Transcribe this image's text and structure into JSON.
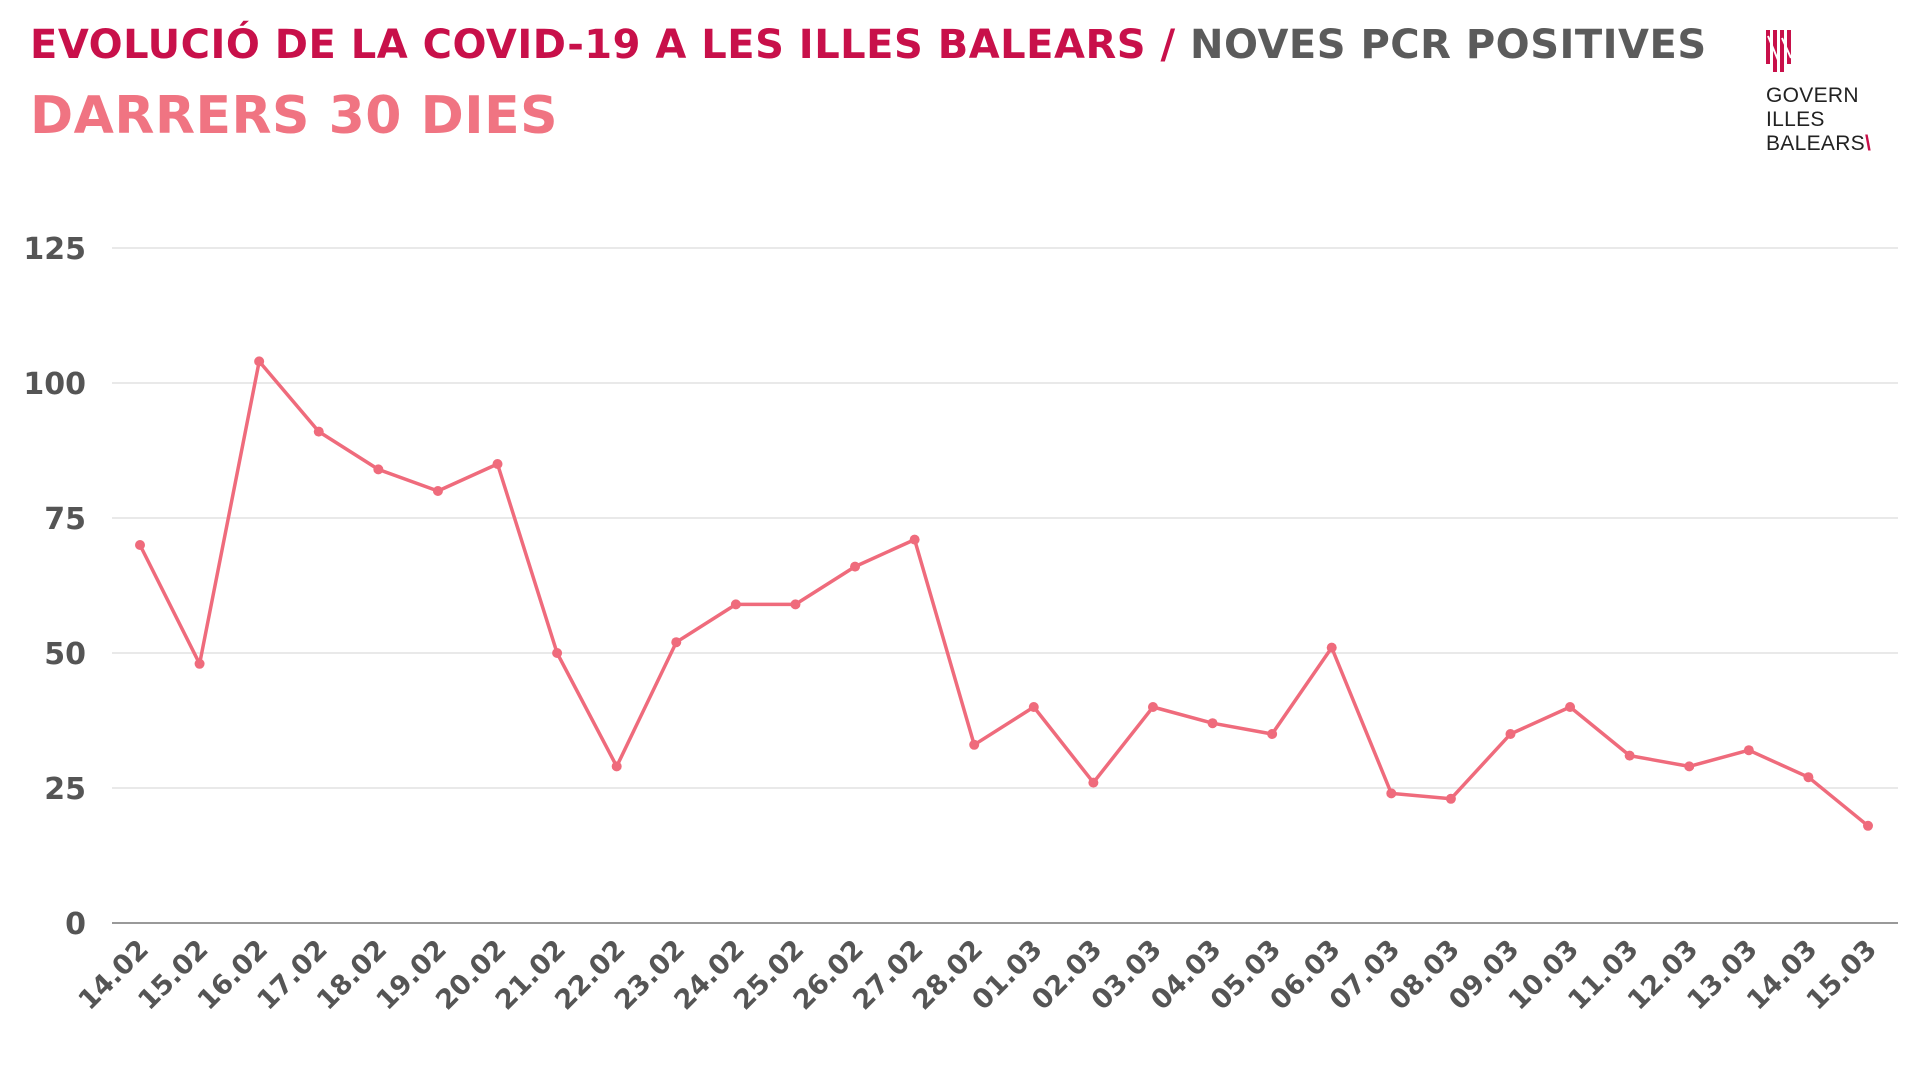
{
  "header": {
    "title_main": "EVOLUCIÓ DE LA COVID-19 A LES ILLES BALEARS",
    "title_separator": "/",
    "title_sub": "NOVES PCR POSITIVES",
    "subtitle": "DARRERS 30 DIES"
  },
  "logo": {
    "line1": "GOVERN",
    "line2": "ILLES",
    "line3": "BALEARS",
    "icon": "balearic-government-emblem-icon"
  },
  "colors": {
    "title": "#c8104a",
    "title_sub": "#5b5b5b",
    "subtitle": "#f07482",
    "series": "#ef6b7c",
    "grid": "#e2e2e2",
    "axis": "#999999",
    "tick_text": "#555555"
  },
  "chart_data": {
    "type": "line",
    "title": "EVOLUCIÓ DE LA COVID-19 A LES ILLES BALEARS / NOVES PCR POSITIVES",
    "subtitle": "DARRERS 30 DIES",
    "xlabel": "",
    "ylabel": "",
    "ylim": [
      0,
      125
    ],
    "yticks": [
      0,
      25,
      50,
      75,
      100,
      125
    ],
    "grid": true,
    "legend": "none",
    "categories": [
      "14.02",
      "15.02",
      "16.02",
      "17.02",
      "18.02",
      "19.02",
      "20.02",
      "21.02",
      "22.02",
      "23.02",
      "24.02",
      "25.02",
      "26.02",
      "27.02",
      "28.02",
      "01.03",
      "02.03",
      "03.03",
      "04.03",
      "05.03",
      "06.03",
      "07.03",
      "08.03",
      "09.03",
      "10.03",
      "11.03",
      "12.03",
      "13.03",
      "14.03",
      "15.03"
    ],
    "series": [
      {
        "values": [
          70,
          48,
          104,
          91,
          84,
          80,
          85,
          50,
          29,
          52,
          59,
          59,
          66,
          71,
          33,
          40,
          26,
          40,
          37,
          35,
          51,
          24,
          23,
          35,
          40,
          31,
          29,
          32,
          27,
          18
        ]
      }
    ]
  }
}
